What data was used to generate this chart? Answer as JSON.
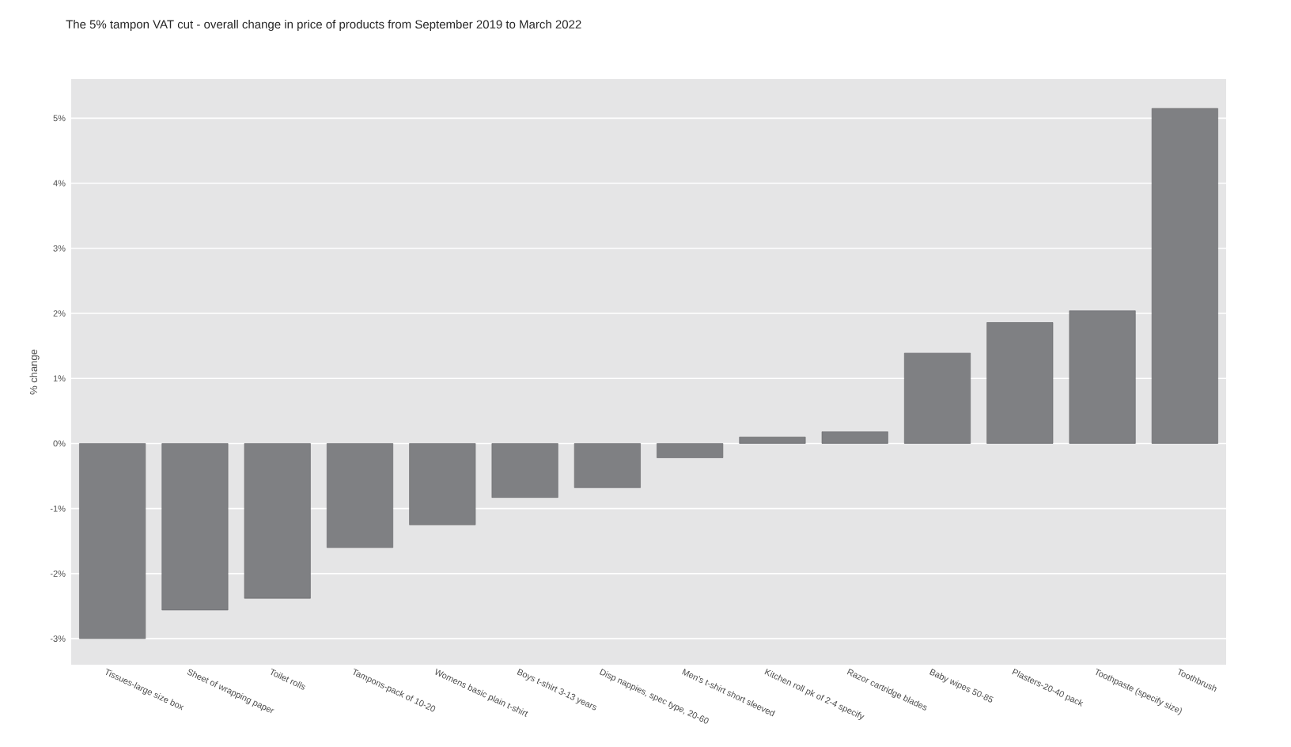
{
  "chart_data": {
    "type": "bar",
    "title": "The 5% tampon VAT cut - overall change in price of products from September 2019 to March 2022",
    "ylabel": "% change",
    "categories": [
      "Tissues-large size box",
      "Sheet of wrapping paper",
      "Toilet rolls",
      "Tampons-pack of 10-20",
      "Womens basic plain t-shirt",
      "Boys t-shirt 3-13 years",
      "Disp nappies, spec type, 20-60",
      "Men's t-shirt short sleeved",
      "Kitchen roll pk of 2-4 specify",
      "Razor cartridge blades",
      "Baby wipes 50-85",
      "Plasters-20-40 pack",
      "Toothpaste (specify size)",
      "Toothbrush"
    ],
    "values": [
      -3.0,
      -2.56,
      -2.38,
      -1.6,
      -1.25,
      -0.83,
      -0.68,
      -0.22,
      0.1,
      0.18,
      1.39,
      1.86,
      2.04,
      5.15
    ],
    "color": "#7f8083",
    "ylim": [
      -3.4,
      5.6
    ],
    "yticks": [
      {
        "value": -3,
        "label": "-3%"
      },
      {
        "value": -2,
        "label": "-2%"
      },
      {
        "value": -1,
        "label": "-1%"
      },
      {
        "value": 0,
        "label": "0%"
      },
      {
        "value": 1,
        "label": "1%"
      },
      {
        "value": 2,
        "label": "2%"
      },
      {
        "value": 3,
        "label": "3%"
      },
      {
        "value": 4,
        "label": "4%"
      },
      {
        "value": 5,
        "label": "5%"
      }
    ],
    "grid": "y"
  }
}
